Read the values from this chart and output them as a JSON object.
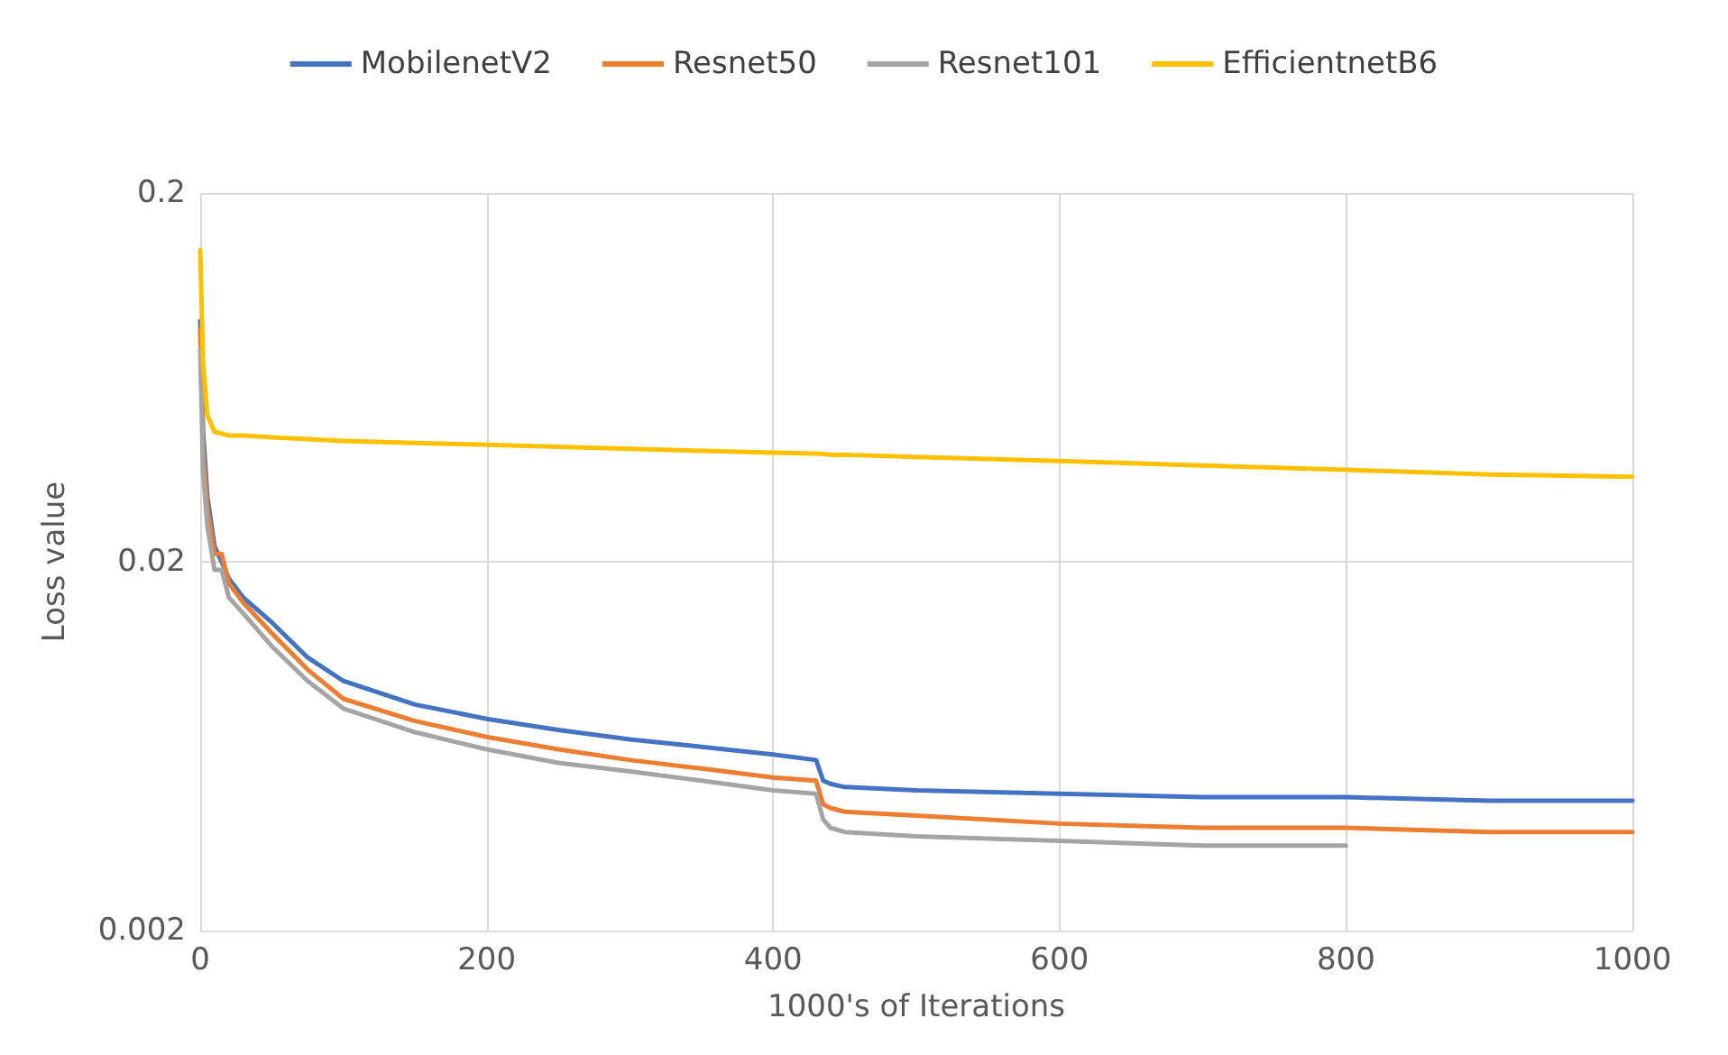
{
  "chart_data": {
    "type": "line",
    "xlabel": "1000's of Iterations",
    "ylabel": "Loss value",
    "log": "y",
    "grid": true,
    "legend": "top",
    "marker": "none",
    "line_style": "solid",
    "xlim": [
      0,
      1000
    ],
    "xticks": [
      0,
      200,
      400,
      600,
      800,
      1000
    ],
    "ylim": [
      0.002,
      0.2
    ],
    "yticks": [
      0.002,
      0.02,
      0.2
    ],
    "x": [
      0,
      2,
      5,
      10,
      15,
      20,
      30,
      50,
      75,
      100,
      150,
      200,
      250,
      300,
      350,
      400,
      430,
      435,
      440,
      450,
      500,
      600,
      700,
      800,
      900,
      1000
    ],
    "series": [
      {
        "name": "MobilenetV2",
        "color": "#4472c4",
        "values": [
          0.09,
          0.045,
          0.03,
          0.022,
          0.02,
          0.018,
          0.016,
          0.0137,
          0.011,
          0.0095,
          0.0082,
          0.0075,
          0.007,
          0.0066,
          0.0063,
          0.006,
          0.0058,
          0.0051,
          0.005,
          0.0049,
          0.0048,
          0.0047,
          0.0046,
          0.0046,
          0.0045,
          0.0045
        ]
      },
      {
        "name": "Resnet50",
        "color": "#ed7d31",
        "values": [
          0.085,
          0.04,
          0.028,
          0.021,
          0.021,
          0.0175,
          0.0155,
          0.0128,
          0.0102,
          0.0085,
          0.0074,
          0.0067,
          0.0062,
          0.0058,
          0.0055,
          0.0052,
          0.0051,
          0.0044,
          0.0043,
          0.0042,
          0.0041,
          0.0039,
          0.0038,
          0.0038,
          0.0037,
          0.0037
        ]
      },
      {
        "name": "Resnet101",
        "color": "#a5a5a5",
        "x": [
          0,
          2,
          5,
          10,
          15,
          20,
          30,
          50,
          75,
          100,
          150,
          200,
          250,
          300,
          350,
          400,
          430,
          435,
          440,
          450,
          500,
          600,
          700,
          800
        ],
        "values": [
          0.075,
          0.035,
          0.025,
          0.019,
          0.019,
          0.016,
          0.0145,
          0.0118,
          0.0095,
          0.008,
          0.0069,
          0.0062,
          0.0057,
          0.0054,
          0.0051,
          0.0048,
          0.0047,
          0.004,
          0.0038,
          0.0037,
          0.0036,
          0.0035,
          0.0034,
          0.0034
        ]
      },
      {
        "name": "EfficientnetB6",
        "color": "#ffc000",
        "values": [
          0.14,
          0.07,
          0.05,
          0.045,
          0.0445,
          0.044,
          0.044,
          0.0435,
          0.043,
          0.0425,
          0.042,
          0.0415,
          0.041,
          0.0405,
          0.04,
          0.0395,
          0.0393,
          0.0392,
          0.039,
          0.039,
          0.0385,
          0.0375,
          0.0365,
          0.0355,
          0.0345,
          0.034
        ]
      }
    ]
  }
}
